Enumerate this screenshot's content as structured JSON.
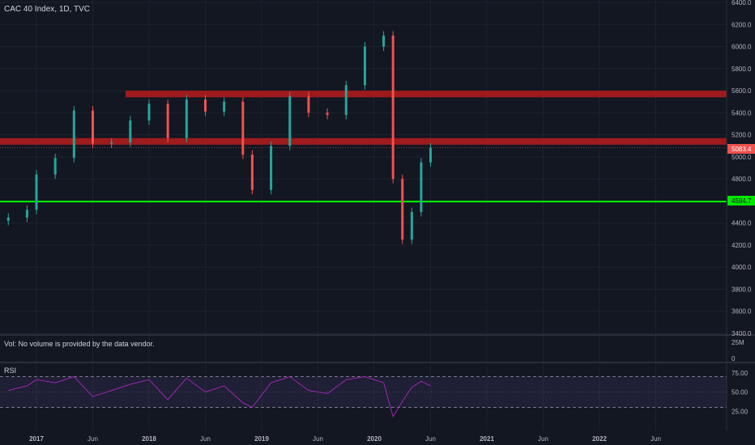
{
  "header": {
    "title": "CAC 40 Index, 1D, TVC"
  },
  "volume_pane": {
    "message": "Vol: No volume is provided by the data vendor.",
    "scale": [
      "25M",
      "0"
    ]
  },
  "rsi_pane": {
    "label": "RSI",
    "scale": [
      "75.00",
      "50.00",
      "25.00"
    ]
  },
  "price_tags": {
    "last": "5083.4",
    "support": "4594.7"
  },
  "chart_data": [
    {
      "type": "candlestick",
      "title": "CAC 40 Index, 1D, TVC",
      "ylim": [
        3400,
        6400
      ],
      "y_ticks": [
        3400,
        3600,
        3800,
        4000,
        4200,
        4400,
        4600,
        4800,
        5000,
        5200,
        5400,
        5600,
        5800,
        6000,
        6200,
        6400
      ],
      "x_ticks": [
        "2017",
        "Jun",
        "2018",
        "Jun",
        "2019",
        "Jun",
        "2020",
        "Jun",
        "2021",
        "Jun",
        "2022",
        "Jun"
      ],
      "x_tick_bold": [
        true,
        false,
        true,
        false,
        true,
        false,
        true,
        false,
        true,
        false,
        true,
        false
      ],
      "x": [
        "2016-10",
        "2016-12",
        "2017-01",
        "2017-03",
        "2017-05",
        "2017-07",
        "2017-09",
        "2017-11",
        "2018-01",
        "2018-03",
        "2018-05",
        "2018-07",
        "2018-09",
        "2018-11",
        "2018-12",
        "2019-02",
        "2019-04",
        "2019-06",
        "2019-08",
        "2019-10",
        "2019-12",
        "2020-02",
        "2020-03",
        "2020-04",
        "2020-05",
        "2020-06",
        "2020-07"
      ],
      "close": [
        4450,
        4520,
        4840,
        4990,
        5420,
        5120,
        5130,
        5330,
        5480,
        5170,
        5520,
        5410,
        5500,
        5020,
        4700,
        5100,
        5550,
        5400,
        5380,
        5650,
        6000,
        6100,
        4800,
        4250,
        4500,
        4950,
        5083.4
      ],
      "colors": {
        "up": "#26a69a",
        "down": "#ef5350"
      },
      "annotations": [
        {
          "type": "zone",
          "from": 5540,
          "to": 5600,
          "label": "",
          "color": "#b71c1c"
        },
        {
          "type": "zone",
          "from": 5110,
          "to": 5170,
          "label": "",
          "color": "#b71c1c"
        },
        {
          "type": "line",
          "value": 4594.7,
          "label": "4594.7",
          "color": "#00ff00"
        }
      ]
    },
    {
      "type": "line",
      "title": "RSI",
      "ylim": [
        0,
        100
      ],
      "y_ticks": [
        25,
        50,
        75
      ],
      "bands": [
        30,
        70
      ],
      "x": [
        "2016-10",
        "2016-12",
        "2017-01",
        "2017-03",
        "2017-05",
        "2017-07",
        "2017-09",
        "2017-11",
        "2018-01",
        "2018-03",
        "2018-05",
        "2018-07",
        "2018-09",
        "2018-11",
        "2018-12",
        "2019-02",
        "2019-04",
        "2019-06",
        "2019-08",
        "2019-10",
        "2019-12",
        "2020-02",
        "2020-03",
        "2020-04",
        "2020-05",
        "2020-06",
        "2020-07"
      ],
      "values": [
        52,
        58,
        66,
        62,
        70,
        44,
        52,
        60,
        66,
        40,
        68,
        50,
        58,
        36,
        30,
        62,
        70,
        52,
        48,
        66,
        70,
        62,
        18,
        38,
        56,
        64,
        58
      ],
      "color": "#9c27b0"
    }
  ]
}
